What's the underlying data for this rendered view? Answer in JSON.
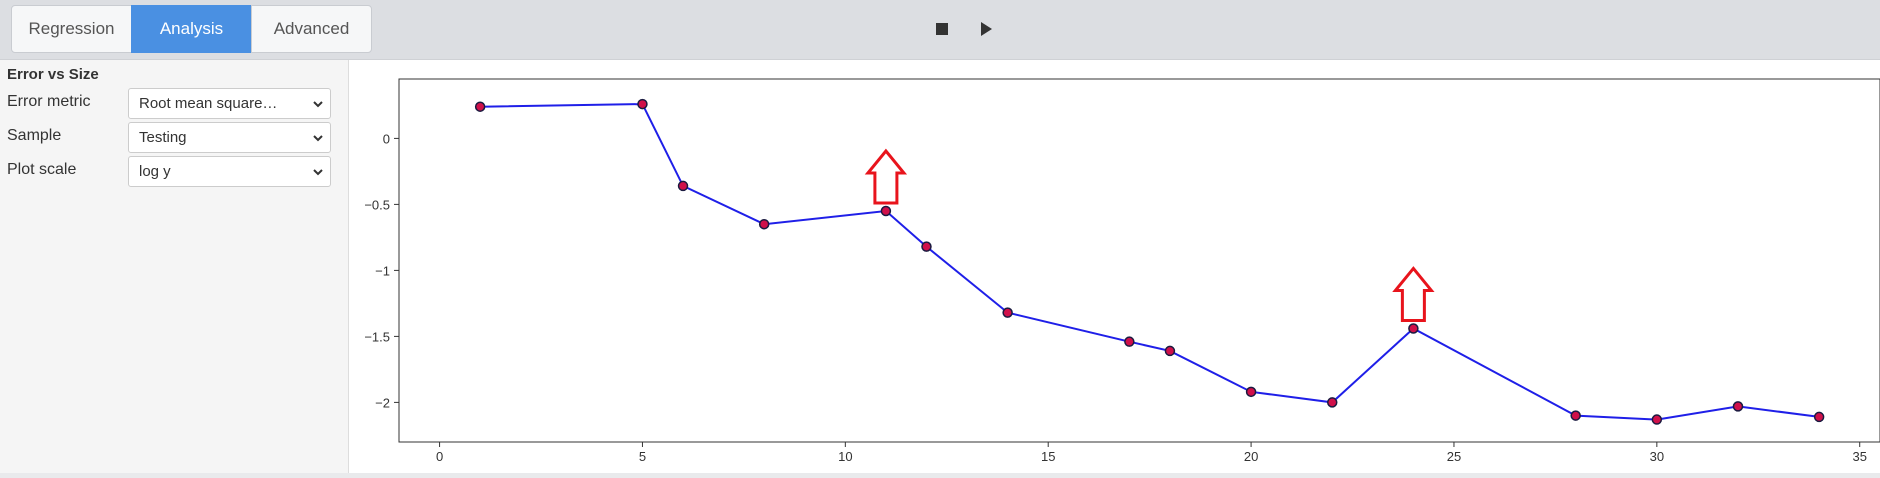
{
  "tabs": [
    {
      "label": "Regression",
      "active": false
    },
    {
      "label": "Analysis",
      "active": true
    },
    {
      "label": "Advanced",
      "active": false
    }
  ],
  "controls": {
    "stop_icon": "stop-icon",
    "play_icon": "play-icon"
  },
  "sidebar": {
    "title": "Error vs Size",
    "rows": [
      {
        "label": "Error metric",
        "value": "Root mean square…"
      },
      {
        "label": "Sample",
        "value": "Testing"
      },
      {
        "label": "Plot scale",
        "value": "log y"
      }
    ]
  },
  "colors": {
    "accent": "#4a90e2",
    "line": "#1f1fe8",
    "marker": "#d0104a",
    "arrow": "#e8141c"
  },
  "chart_data": {
    "type": "line",
    "x": [
      1,
      5,
      6,
      8,
      11,
      12,
      14,
      17,
      18,
      20,
      22,
      24,
      28,
      30,
      32,
      34
    ],
    "y": [
      0.24,
      0.26,
      -0.36,
      -0.65,
      -0.55,
      -0.82,
      -1.32,
      -1.54,
      -1.61,
      -1.92,
      -2.0,
      -1.44,
      -2.1,
      -2.13,
      -2.03,
      -2.11
    ],
    "xlim": [
      -1,
      35.5
    ],
    "ylim": [
      -2.3,
      0.45
    ],
    "xticks": [
      0,
      5,
      10,
      15,
      20,
      25,
      30,
      35
    ],
    "yticks": [
      0,
      -0.5,
      -1,
      -1.5,
      -2
    ],
    "ytick_labels": [
      "0",
      "−0.5",
      "−1",
      "−1.5",
      "−2"
    ],
    "grid": false,
    "annotations": [
      {
        "type": "arrow-up",
        "x": 11
      },
      {
        "type": "arrow-up",
        "x": 24
      }
    ]
  }
}
